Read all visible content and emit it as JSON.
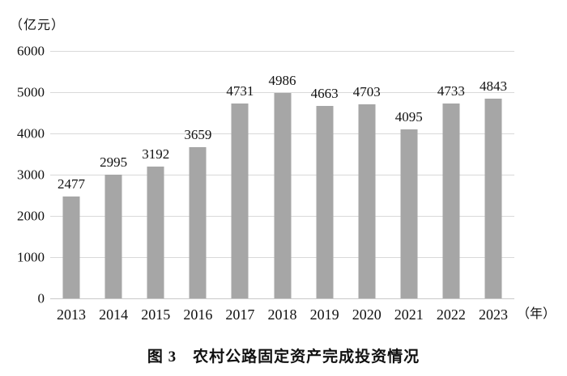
{
  "chart_data": {
    "type": "bar",
    "title": "图 3　农村公路固定资产完成投资情况",
    "ylabel": "（亿元）",
    "xlabel": "（年）",
    "categories": [
      "2013",
      "2014",
      "2015",
      "2016",
      "2017",
      "2018",
      "2019",
      "2020",
      "2021",
      "2022",
      "2023"
    ],
    "values": [
      2477,
      2995,
      3192,
      3659,
      4731,
      4986,
      4663,
      4703,
      4095,
      4733,
      4843
    ],
    "ylim": [
      0,
      6000
    ],
    "y_ticks": [
      0,
      1000,
      2000,
      3000,
      4000,
      5000,
      6000
    ],
    "grid": true,
    "legend": "none",
    "bar_color": "#a6a6a6",
    "gridline_color": "#d9d9d9",
    "text_color": "#111111"
  }
}
